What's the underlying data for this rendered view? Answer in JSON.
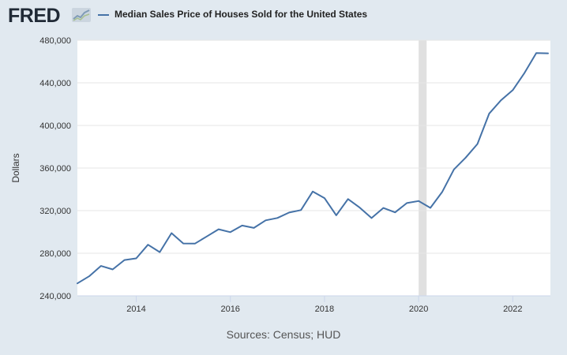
{
  "header": {
    "logo_text": "FRED",
    "logo_icon": "chart-trend-icon"
  },
  "chart_data": {
    "type": "line",
    "title": "",
    "legend": [
      "Median Sales Price of Houses Sold for the United States"
    ],
    "ylabel": "Dollars",
    "xlabel": "",
    "ylim": [
      240000,
      480000
    ],
    "y_ticks": [
      240000,
      280000,
      320000,
      360000,
      400000,
      440000,
      480000
    ],
    "y_tick_labels": [
      "240,000",
      "280,000",
      "320,000",
      "360,000",
      "400,000",
      "440,000",
      "480,000"
    ],
    "x_ticks": [
      2014,
      2016,
      2018,
      2020,
      2022
    ],
    "x_tick_labels": [
      "2014",
      "2016",
      "2018",
      "2020",
      "2022"
    ],
    "xlim": [
      2012.75,
      2022.8
    ],
    "recession": [
      2020.0,
      2020.17
    ],
    "series": [
      {
        "name": "Median Sales Price of Houses Sold for the United States",
        "color": "#4572a7",
        "x": [
          2012.75,
          2013.0,
          2013.25,
          2013.5,
          2013.75,
          2014.0,
          2014.25,
          2014.5,
          2014.75,
          2015.0,
          2015.25,
          2015.5,
          2015.75,
          2016.0,
          2016.25,
          2016.5,
          2016.75,
          2017.0,
          2017.25,
          2017.5,
          2017.75,
          2018.0,
          2018.25,
          2018.5,
          2018.75,
          2019.0,
          2019.25,
          2019.5,
          2019.75,
          2020.0,
          2020.25,
          2020.5,
          2020.75,
          2021.0,
          2021.25,
          2021.5,
          2021.75,
          2022.0,
          2022.25,
          2022.5,
          2022.75
        ],
        "values": [
          251700,
          258400,
          268100,
          264800,
          273600,
          275200,
          288000,
          281000,
          298900,
          289200,
          289100,
          295800,
          302500,
          299800,
          306000,
          303800,
          310900,
          313100,
          318200,
          320500,
          337900,
          331800,
          315600,
          330900,
          322800,
          313000,
          322500,
          318400,
          327100,
          329000,
          322600,
          337500,
          358700,
          369800,
          382600,
          411200,
          423600,
          433100,
          449300,
          468000,
          467700
        ]
      }
    ]
  },
  "footer": {
    "source_text": "Sources: Census; HUD"
  }
}
